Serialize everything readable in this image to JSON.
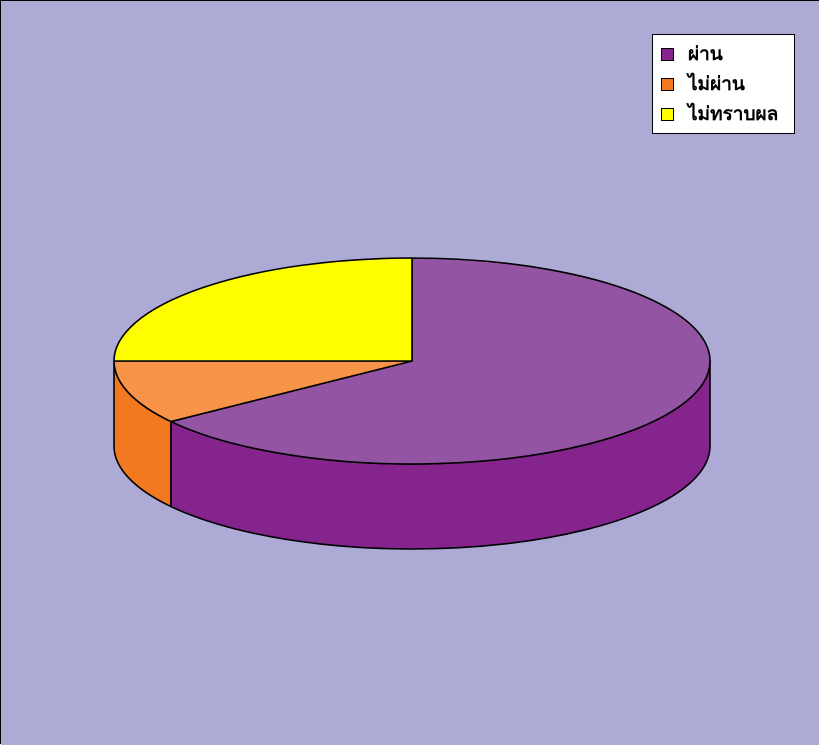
{
  "background_color": "#aeaad6",
  "chart_data": {
    "type": "pie",
    "style": "3d",
    "categories": [
      "ผ่าน",
      "ไม่ผ่าน",
      "ไม่ทราบผล"
    ],
    "values": [
      65,
      10,
      25
    ],
    "colors": [
      "#9454a4",
      "#f8944a",
      "#fefe00"
    ],
    "side_colors": [
      "#84248c",
      "#f27920",
      "#d0d000"
    ],
    "legend": {
      "position": "top-right",
      "entries": [
        {
          "label": "ผ่าน",
          "color": "#84248c"
        },
        {
          "label": "ไม่ผ่าน",
          "color": "#f27920"
        },
        {
          "label": "ไม่ทราบผล",
          "color": "#fefe00"
        }
      ]
    },
    "title": "",
    "grid": false
  }
}
